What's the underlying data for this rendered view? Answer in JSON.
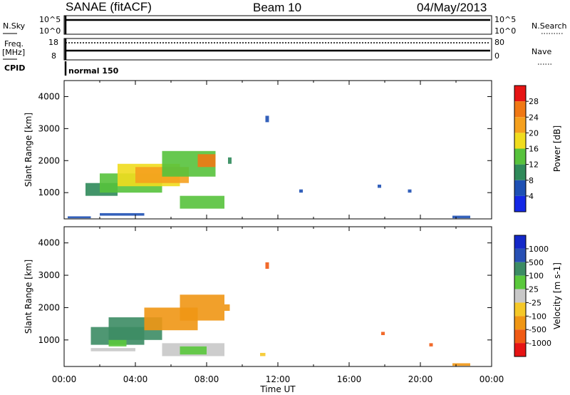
{
  "header": {
    "station": "SANAE (fitACF)",
    "beam": "Beam 10",
    "date": "04/May/2013"
  },
  "colors": {
    "power_scale": [
      "#1428e6",
      "#1e50b4",
      "#2f8a5a",
      "#57c23c",
      "#f0dc1e",
      "#f5a01e",
      "#f07814",
      "#e61414"
    ],
    "velocity_scale": [
      "#e61414",
      "#f05a14",
      "#f09614",
      "#f5c828",
      "#c8c8c8",
      "#5ac83c",
      "#3c8c64",
      "#2850b4",
      "#1428c8"
    ]
  },
  "top_panels": {
    "nsky_label": "N.Sky",
    "nsky_ticks": [
      "10^5",
      "10^0"
    ],
    "nsearch_label": "N.Search",
    "nsearch_ticks": [
      "10^5",
      "10^0"
    ],
    "freq_label_1": "Freq.",
    "freq_label_2": "[MHz]",
    "freq_ticks": [
      "18",
      "8"
    ],
    "nave_label": "Nave",
    "nave_ticks": [
      "80",
      "0"
    ],
    "cpid_label": "CPID",
    "cpid_value": "normal 150"
  },
  "chart_data": [
    {
      "type": "heatmap",
      "name": "power",
      "ylabel": "Slant Range [km]",
      "colorbar_label": "Power [dB]",
      "colorbar_ticks": [
        "4",
        "8",
        "12",
        "16",
        "20",
        "24",
        "28"
      ],
      "xlim": [
        0,
        24
      ],
      "ylim": [
        180,
        4500
      ],
      "yticks": [
        "1000",
        "2000",
        "3000",
        "4000"
      ],
      "regions": [
        {
          "t0": 1.2,
          "t1": 3.0,
          "r0": 900,
          "r1": 1300,
          "level": 2
        },
        {
          "t0": 2.0,
          "t1": 5.5,
          "r0": 1000,
          "r1": 1600,
          "level": 3
        },
        {
          "t0": 3.0,
          "t1": 6.5,
          "r0": 1200,
          "r1": 1900,
          "level": 4
        },
        {
          "t0": 4.0,
          "t1": 7.0,
          "r0": 1300,
          "r1": 1800,
          "level": 5
        },
        {
          "t0": 5.5,
          "t1": 8.5,
          "r0": 1500,
          "r1": 2300,
          "level": 3
        },
        {
          "t0": 7.5,
          "t1": 8.5,
          "r0": 1800,
          "r1": 2200,
          "level": 6
        },
        {
          "t0": 6.5,
          "t1": 9.0,
          "r0": 500,
          "r1": 900,
          "level": 3
        },
        {
          "t0": 2.0,
          "t1": 4.5,
          "r0": 280,
          "r1": 360,
          "level": 1
        },
        {
          "t0": 0.2,
          "t1": 1.5,
          "r0": 200,
          "r1": 260,
          "level": 1
        },
        {
          "t0": 21.8,
          "t1": 22.8,
          "r0": 200,
          "r1": 280,
          "level": 1
        },
        {
          "t0": 11.3,
          "t1": 11.5,
          "r0": 3200,
          "r1": 3400,
          "level": 1
        },
        {
          "t0": 9.2,
          "t1": 9.4,
          "r0": 1900,
          "r1": 2100,
          "level": 2
        },
        {
          "t0": 13.2,
          "t1": 13.4,
          "r0": 1000,
          "r1": 1100,
          "level": 1
        },
        {
          "t0": 17.6,
          "t1": 17.8,
          "r0": 1150,
          "r1": 1250,
          "level": 1
        },
        {
          "t0": 19.3,
          "t1": 19.5,
          "r0": 1000,
          "r1": 1100,
          "level": 1
        }
      ]
    },
    {
      "type": "heatmap",
      "name": "velocity",
      "ylabel": "Slant Range [km]",
      "colorbar_label": "Velocity [m s-1]",
      "colorbar_ticks": [
        "1000",
        "500",
        "100",
        "25",
        "-25",
        "-100",
        "-500",
        "-1000"
      ],
      "xlim": [
        0,
        24
      ],
      "ylim": [
        180,
        4500
      ],
      "yticks": [
        "1000",
        "2000",
        "3000",
        "4000"
      ],
      "xticks": [
        "00:00",
        "04:00",
        "08:00",
        "12:00",
        "16:00",
        "20:00",
        "00:00"
      ],
      "xlabel": "Time UT",
      "regions": [
        {
          "t0": 1.5,
          "t1": 4.5,
          "r0": 850,
          "r1": 1400,
          "level": 6
        },
        {
          "t0": 2.5,
          "t1": 5.5,
          "r0": 1000,
          "r1": 1700,
          "level": 6
        },
        {
          "t0": 4.5,
          "t1": 7.5,
          "r0": 1300,
          "r1": 2000,
          "level": 2
        },
        {
          "t0": 6.5,
          "t1": 9.0,
          "r0": 1600,
          "r1": 2400,
          "level": 2
        },
        {
          "t0": 5.5,
          "t1": 9.0,
          "r0": 500,
          "r1": 900,
          "level": 4
        },
        {
          "t0": 6.5,
          "t1": 8.0,
          "r0": 550,
          "r1": 800,
          "level": 5
        },
        {
          "t0": 1.5,
          "t1": 4.0,
          "r0": 650,
          "r1": 750,
          "level": 4
        },
        {
          "t0": 2.5,
          "t1": 3.5,
          "r0": 800,
          "r1": 1000,
          "level": 5
        },
        {
          "t0": 11.3,
          "t1": 11.5,
          "r0": 3200,
          "r1": 3400,
          "level": 1
        },
        {
          "t0": 9.0,
          "t1": 9.3,
          "r0": 1900,
          "r1": 2100,
          "level": 2
        },
        {
          "t0": 21.8,
          "t1": 22.8,
          "r0": 200,
          "r1": 280,
          "level": 2
        },
        {
          "t0": 11.0,
          "t1": 11.3,
          "r0": 500,
          "r1": 600,
          "level": 3
        },
        {
          "t0": 17.8,
          "t1": 18.0,
          "r0": 1150,
          "r1": 1250,
          "level": 1
        },
        {
          "t0": 20.5,
          "t1": 20.7,
          "r0": 800,
          "r1": 900,
          "level": 1
        }
      ]
    }
  ]
}
